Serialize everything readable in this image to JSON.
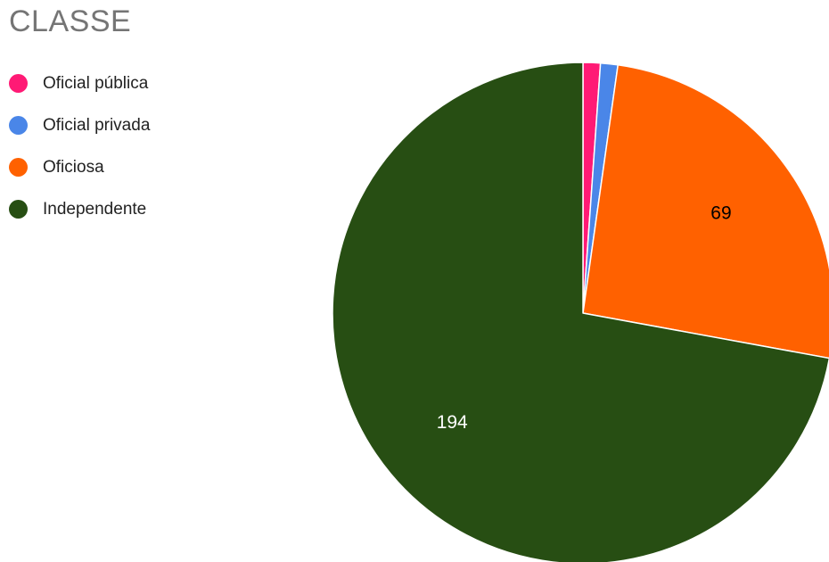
{
  "chart_data": {
    "type": "pie",
    "title": "CLASSE",
    "legend_position": "left",
    "categories": [
      "Oficial pública",
      "Oficial privada",
      "Oficiosa",
      "Independente"
    ],
    "values": [
      3,
      3,
      69,
      194
    ],
    "colors": [
      "#ff1a75",
      "#4a86e8",
      "#ff6100",
      "#274e13"
    ],
    "data_labels": [
      "",
      "",
      "69",
      "194"
    ],
    "data_label_colors": [
      "",
      "",
      "#000000",
      "#ffffff"
    ]
  }
}
